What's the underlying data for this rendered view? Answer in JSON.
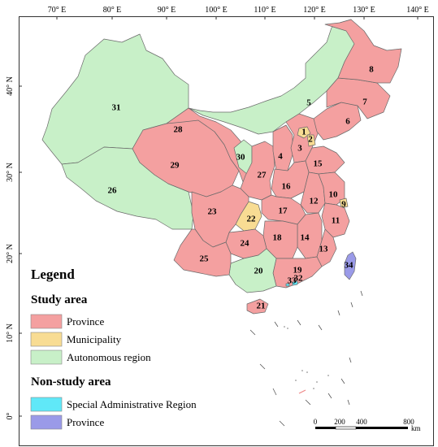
{
  "colors": {
    "province": "#f4a0a0",
    "municipality": "#f8dc93",
    "autonomous_region": "#c8f0c8",
    "sar": "#60e8f8",
    "non_study_province": "#9a9ae8"
  },
  "axes": {
    "longitude_labels": [
      "70° E",
      "80° E",
      "90° E",
      "100° E",
      "110° E",
      "120° E",
      "130° E",
      "140° E"
    ],
    "latitude_labels": [
      "40° N",
      "30° N",
      "20° N",
      "10° N",
      "0°"
    ]
  },
  "legend": {
    "title": "Legend",
    "study_area": {
      "heading": "Study area",
      "items": [
        {
          "label": "Province",
          "color": "#f4a0a0"
        },
        {
          "label": "Municipality",
          "color": "#f8dc93"
        },
        {
          "label": "Autonomous region",
          "color": "#c8f0c8"
        }
      ]
    },
    "non_study_area": {
      "heading": "Non-study area",
      "items": [
        {
          "label": "Special Administrative Region",
          "color": "#60e8f8"
        },
        {
          "label": "Province",
          "color": "#9a9ae8"
        }
      ]
    }
  },
  "scale_bar": {
    "labels": [
      "0",
      "200",
      "400",
      "800"
    ],
    "unit": "km"
  },
  "regions": [
    {
      "id": "1",
      "type": "municipality"
    },
    {
      "id": "2",
      "type": "municipality"
    },
    {
      "id": "3",
      "type": "province"
    },
    {
      "id": "4",
      "type": "province"
    },
    {
      "id": "5",
      "type": "autonomous_region"
    },
    {
      "id": "6",
      "type": "province"
    },
    {
      "id": "7",
      "type": "province"
    },
    {
      "id": "8",
      "type": "province"
    },
    {
      "id": "9",
      "type": "municipality"
    },
    {
      "id": "10",
      "type": "province"
    },
    {
      "id": "11",
      "type": "province"
    },
    {
      "id": "12",
      "type": "province"
    },
    {
      "id": "13",
      "type": "province"
    },
    {
      "id": "14",
      "type": "province"
    },
    {
      "id": "15",
      "type": "province"
    },
    {
      "id": "16",
      "type": "province"
    },
    {
      "id": "17",
      "type": "province"
    },
    {
      "id": "18",
      "type": "province"
    },
    {
      "id": "19",
      "type": "province"
    },
    {
      "id": "20",
      "type": "autonomous_region"
    },
    {
      "id": "21",
      "type": "province"
    },
    {
      "id": "22",
      "type": "municipality"
    },
    {
      "id": "23",
      "type": "province"
    },
    {
      "id": "24",
      "type": "province"
    },
    {
      "id": "25",
      "type": "province"
    },
    {
      "id": "26",
      "type": "autonomous_region"
    },
    {
      "id": "27",
      "type": "province"
    },
    {
      "id": "28",
      "type": "province"
    },
    {
      "id": "29",
      "type": "province"
    },
    {
      "id": "30",
      "type": "autonomous_region"
    },
    {
      "id": "31",
      "type": "autonomous_region"
    },
    {
      "id": "32",
      "type": "sar"
    },
    {
      "id": "33",
      "type": "sar"
    },
    {
      "id": "34",
      "type": "non_study_province"
    }
  ]
}
